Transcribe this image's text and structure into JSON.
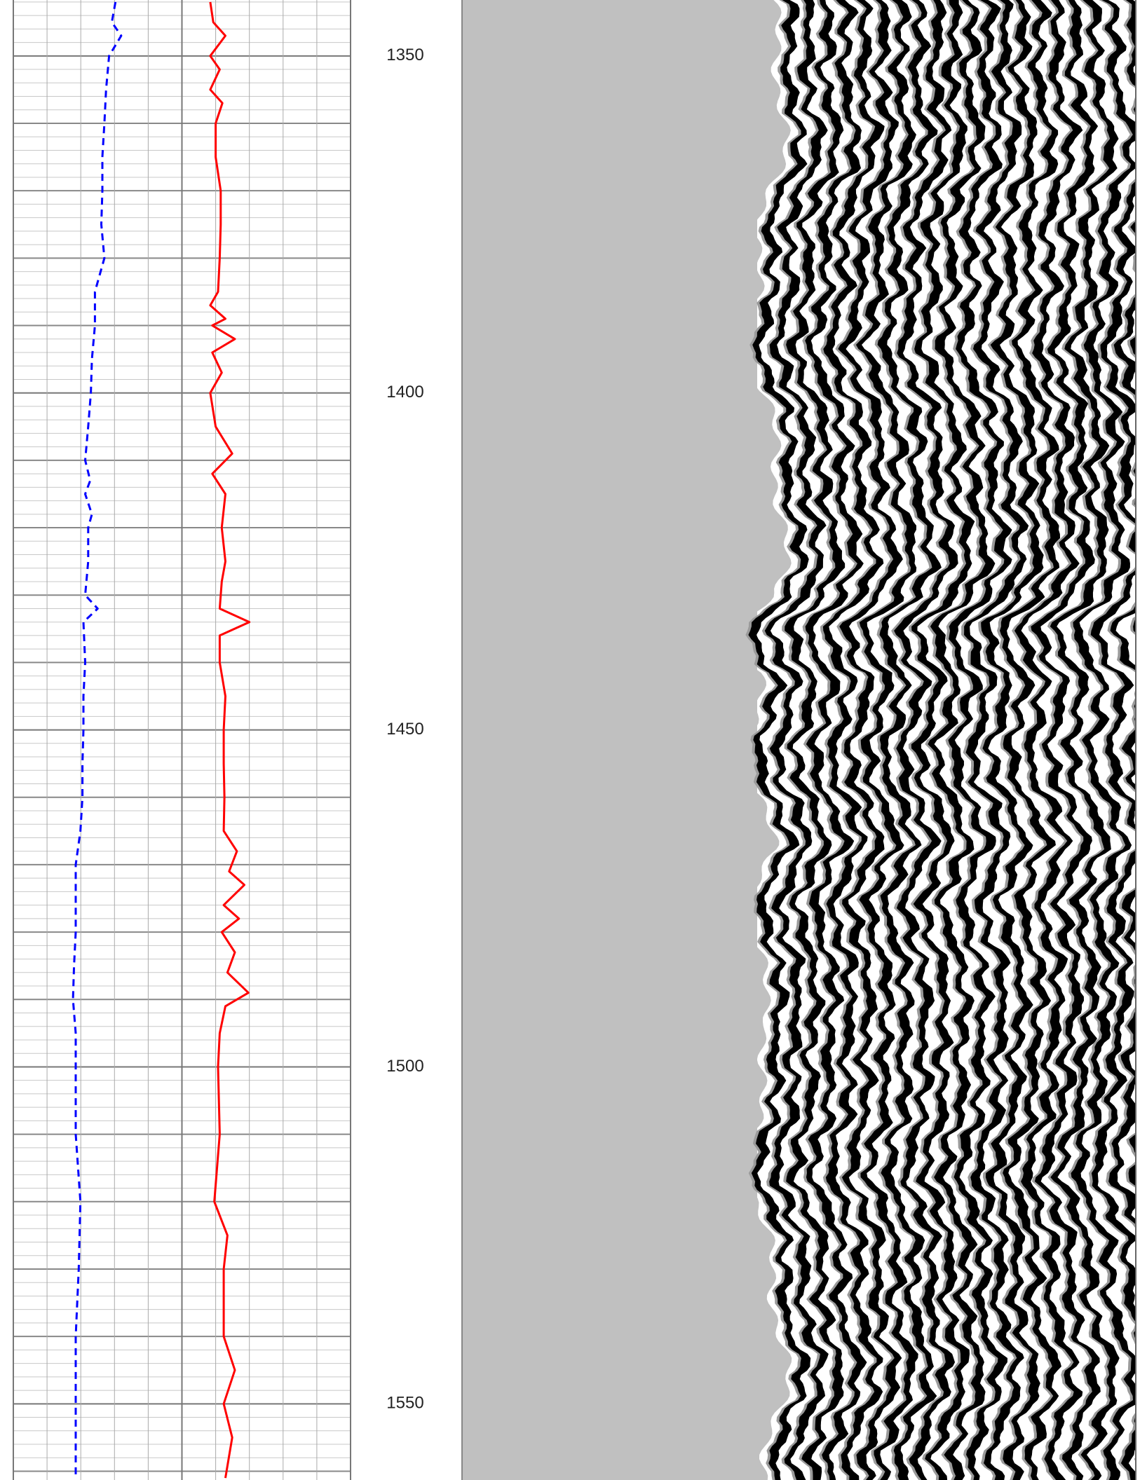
{
  "chart_data": {
    "type": "line",
    "ylim": [
      1341.7,
      1561.3
    ],
    "yticks": [
      1350,
      1400,
      1450,
      1500,
      1550
    ],
    "xlim": [
      0,
      100
    ],
    "grid": true,
    "series": [
      {
        "color": "#0000ff",
        "dash": true,
        "x": [
          1342,
          1345,
          1347,
          1350,
          1355,
          1360,
          1365,
          1370,
          1375,
          1380,
          1385,
          1390,
          1395,
          1400,
          1405,
          1410,
          1413,
          1415,
          1418,
          1420,
          1425,
          1430,
          1432,
          1434,
          1440,
          1445,
          1450,
          1455,
          1460,
          1465,
          1470,
          1475,
          1480,
          1485,
          1490,
          1495,
          1500,
          1510,
          1520,
          1530,
          1540,
          1550,
          1561
        ],
        "values": [
          30.3,
          29.2,
          32,
          28.4,
          27.5,
          27,
          26.4,
          26.4,
          26.1,
          27,
          24.2,
          24.2,
          23.3,
          23,
          22.2,
          21.3,
          22.8,
          21.3,
          23.3,
          22.2,
          22.2,
          21.3,
          25,
          20.8,
          21.3,
          20.8,
          20.8,
          20.5,
          20.5,
          19.9,
          18.5,
          18.5,
          18.5,
          18,
          17.7,
          18.5,
          18.5,
          18.5,
          19.9,
          19.4,
          18.5,
          18.5,
          18.5
        ]
      },
      {
        "color": "#ff0000",
        "dash": false,
        "x": [
          1342,
          1345,
          1347,
          1350,
          1352,
          1355,
          1357,
          1360,
          1365,
          1370,
          1375,
          1380,
          1385,
          1387,
          1389,
          1390,
          1392,
          1394,
          1397,
          1400,
          1405,
          1409,
          1412,
          1415,
          1420,
          1425,
          1428,
          1432,
          1434,
          1436,
          1440,
          1445,
          1450,
          1455,
          1460,
          1465,
          1468,
          1471,
          1473,
          1476,
          1478,
          1480,
          1483,
          1486,
          1489,
          1491,
          1495,
          1500,
          1510,
          1520,
          1525,
          1530,
          1540,
          1545,
          1550,
          1555,
          1561
        ],
        "values": [
          58.4,
          59.3,
          62.9,
          58.4,
          61.2,
          58.4,
          62,
          60,
          60,
          61.5,
          61.5,
          61.2,
          60.7,
          58.4,
          62.9,
          59,
          65.7,
          59,
          61.8,
          58.4,
          60,
          64.9,
          59,
          62.9,
          61.8,
          62.9,
          61.8,
          61.2,
          70,
          61.2,
          61.2,
          62.9,
          62.4,
          62.4,
          62.6,
          62.4,
          66.3,
          64,
          68.5,
          62.4,
          66.9,
          61.8,
          65.7,
          63.5,
          69.7,
          62.9,
          61.2,
          60.7,
          61.2,
          59.6,
          63.5,
          62.4,
          62.4,
          65.7,
          62.4,
          64.9,
          62.9
        ]
      }
    ]
  }
}
